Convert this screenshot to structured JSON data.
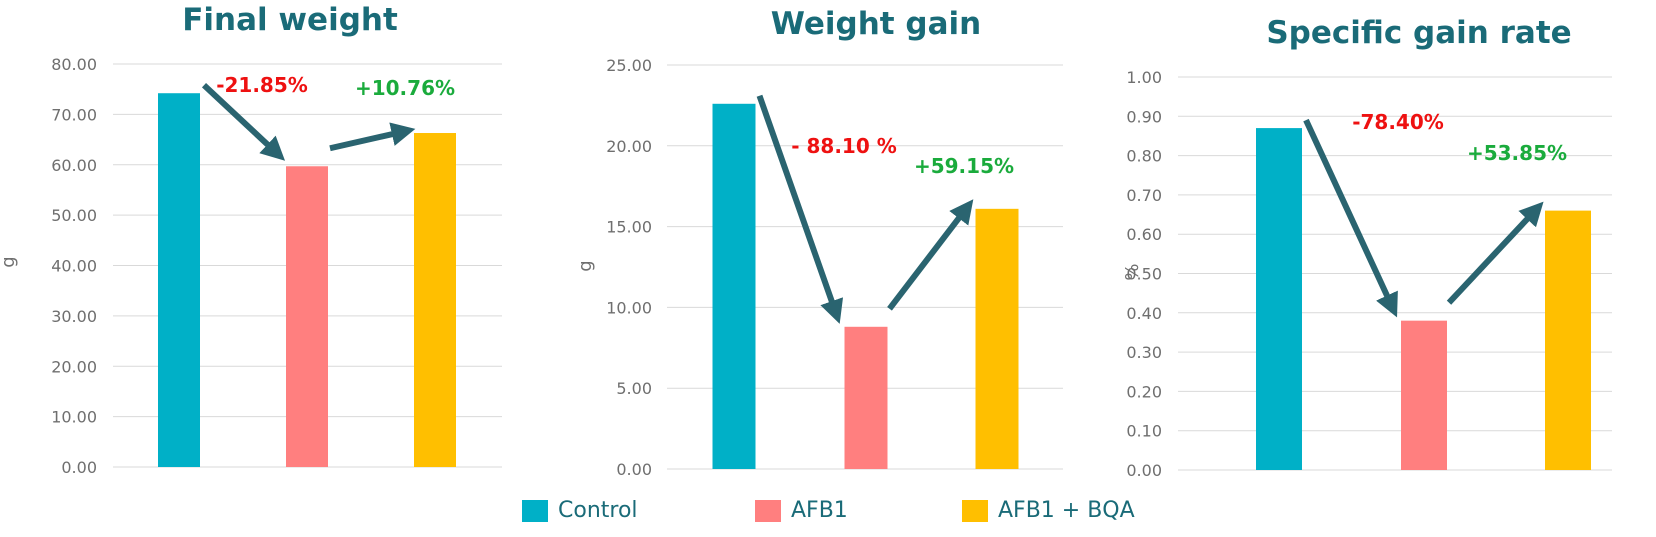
{
  "colors": {
    "title": "#1a6b78",
    "axis_text": "#6f6f6f",
    "grid": "#d9d9d9",
    "arrow": "#2a6470",
    "decrease": "#ee1111",
    "increase": "#1aab3c"
  },
  "legend": [
    {
      "label": "Control",
      "color": "#00b0c7"
    },
    {
      "label": "AFB1",
      "color": "#ff7f7f"
    },
    {
      "label": "AFB1 + BQA",
      "color": "#ffbf00"
    }
  ],
  "chart_data": [
    {
      "type": "bar",
      "title": "Final weight",
      "ylabel": "g",
      "categories": [
        "Control",
        "AFB1",
        "AFB1 + BQA"
      ],
      "values": [
        74.2,
        59.7,
        66.3
      ],
      "ylim": [
        0,
        80
      ],
      "yticks": [
        "0.00",
        "10.00",
        "20.00",
        "30.00",
        "40.00",
        "50.00",
        "60.00",
        "70.00",
        "80.00"
      ],
      "grid": true,
      "annotations": [
        {
          "text": "-21.85%",
          "kind": "decrease"
        },
        {
          "text": "+10.76%",
          "kind": "increase"
        }
      ]
    },
    {
      "type": "bar",
      "title": "Weight gain",
      "ylabel": "g",
      "categories": [
        "Control",
        "AFB1",
        "AFB1 + BQA"
      ],
      "values": [
        22.6,
        8.8,
        16.1
      ],
      "ylim": [
        0,
        25
      ],
      "yticks": [
        "0.00",
        "5.00",
        "10.00",
        "15.00",
        "20.00",
        "25.00"
      ],
      "grid": true,
      "annotations": [
        {
          "text": "- 88.10 %",
          "kind": "decrease"
        },
        {
          "text": "+59.15%",
          "kind": "increase"
        }
      ]
    },
    {
      "type": "bar",
      "title": "Specific gain rate",
      "ylabel": "%",
      "categories": [
        "Control",
        "AFB1",
        "AFB1 + BQA"
      ],
      "values": [
        0.87,
        0.38,
        0.66
      ],
      "ylim": [
        0,
        1
      ],
      "yticks": [
        "0.00",
        "0.10",
        "0.20",
        "0.30",
        "0.40",
        "0.50",
        "0.60",
        "0.70",
        "0.80",
        "0.90",
        "1.00"
      ],
      "grid": true,
      "annotations": [
        {
          "text": "-78.40%",
          "kind": "decrease"
        },
        {
          "text": "+53.85%",
          "kind": "increase"
        }
      ]
    }
  ]
}
